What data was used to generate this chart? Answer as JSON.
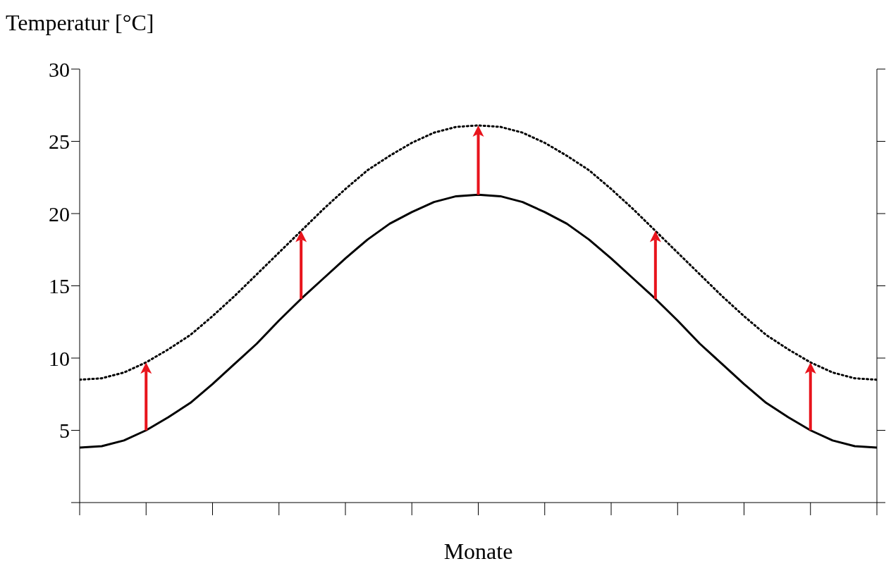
{
  "chart_data": {
    "type": "line",
    "ylabel": "Temperatur [°C]",
    "xlabel": "Monate",
    "categories": [
      null,
      null,
      null,
      null,
      null,
      null,
      null,
      null,
      null,
      null,
      null,
      null,
      null,
      null,
      null,
      null,
      null,
      null,
      null,
      null,
      null,
      null,
      null,
      null,
      null,
      null,
      null,
      null,
      null,
      null,
      null,
      null,
      null,
      null,
      null,
      null,
      null
    ],
    "series": [
      {
        "color": "#000000",
        "line_style": "solid",
        "values": [
          3.8,
          3.9,
          4.3,
          5.0,
          5.9,
          6.9,
          8.2,
          9.6,
          11.0,
          12.6,
          14.1,
          15.5,
          16.9,
          18.2,
          19.3,
          20.1,
          20.8,
          21.2,
          21.3,
          21.2,
          20.8,
          20.1,
          19.3,
          18.2,
          16.9,
          15.5,
          14.1,
          12.6,
          11.0,
          9.6,
          8.2,
          6.9,
          5.9,
          5.0,
          4.3,
          3.9,
          3.8
        ]
      },
      {
        "color": "#000000",
        "line_style": "dotted",
        "values": [
          8.5,
          8.6,
          9.0,
          9.7,
          10.6,
          11.6,
          12.9,
          14.3,
          15.8,
          17.3,
          18.8,
          20.3,
          21.7,
          23.0,
          24.0,
          24.9,
          25.6,
          26.0,
          26.1,
          26.0,
          25.6,
          24.9,
          24.0,
          23.0,
          21.7,
          20.3,
          18.8,
          17.3,
          15.8,
          14.3,
          12.9,
          11.6,
          10.6,
          9.7,
          9.0,
          8.6,
          8.5
        ]
      }
    ],
    "ylim": [
      0,
      30
    ],
    "yticks": [
      {
        "value": 0,
        "label": null
      },
      5,
      10,
      15,
      20,
      25,
      30
    ],
    "marker": "none",
    "grid": false,
    "legend": false
  }
}
